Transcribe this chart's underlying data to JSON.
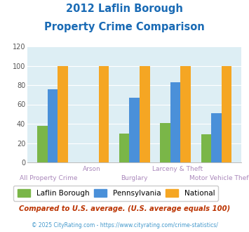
{
  "title_line1": "2012 Laflin Borough",
  "title_line2": "Property Crime Comparison",
  "categories": [
    "All Property Crime",
    "Arson",
    "Burglary",
    "Larceny & Theft",
    "Motor Vehicle Theft"
  ],
  "laflin": [
    38,
    0,
    30,
    41,
    29
  ],
  "pennsylvania": [
    76,
    0,
    67,
    83,
    51
  ],
  "national": [
    100,
    100,
    100,
    100,
    100
  ],
  "color_laflin": "#7ab648",
  "color_pennsylvania": "#4a90d9",
  "color_national": "#f5a623",
  "ylim": [
    0,
    120
  ],
  "yticks": [
    0,
    20,
    40,
    60,
    80,
    100,
    120
  ],
  "legend_labels": [
    "Laflin Borough",
    "Pennsylvania",
    "National"
  ],
  "footnote1": "Compared to U.S. average. (U.S. average equals 100)",
  "footnote2": "© 2025 CityRating.com - https://www.cityrating.com/crime-statistics/",
  "title_color": "#1a6bb5",
  "bg_color": "#ddeef4",
  "footnote1_color": "#bb3300",
  "footnote2_color": "#4499cc",
  "xlabel_color": "#aa88bb",
  "grid_color": "#ffffff",
  "spine_color": "#bbbbbb"
}
